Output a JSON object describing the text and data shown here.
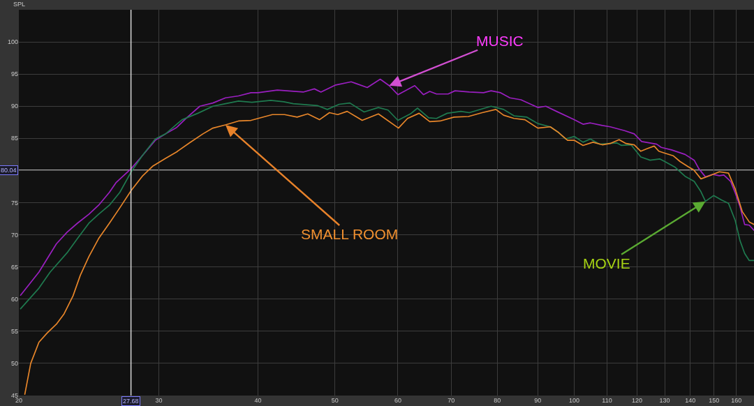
{
  "chart_data": {
    "type": "line",
    "log": "x",
    "ylabel": "SPL",
    "grid": true,
    "xlim": [
      20,
      168.4
    ],
    "xticks": [
      20,
      30,
      40,
      50,
      60,
      70,
      80,
      90,
      100,
      110,
      120,
      130,
      140,
      150,
      160
    ],
    "ylim": [
      45,
      105
    ],
    "yticks": [
      45,
      50,
      55,
      60,
      65,
      70,
      75,
      {
        "value": 80,
        "label": null
      },
      85,
      90,
      95,
      100
    ],
    "ref_lines": [
      {
        "axis": "x",
        "value": 27.68,
        "label": "27.68"
      },
      {
        "axis": "y",
        "value": 80.04,
        "label": "80.04"
      }
    ],
    "annotations": [
      {
        "text": "MUSIC",
        "x": 58.5,
        "y": 93.2
      },
      {
        "text": "SMALL ROOM",
        "x": 36.4,
        "y": 87.1
      },
      {
        "text": "MOVIE",
        "x": 146.3,
        "y": 75.2
      }
    ],
    "series": [
      {
        "color": "#9a1fc0",
        "x": [
          20.1,
          21.2,
          22.3,
          23.0,
          23.7,
          24.5,
          25.2,
          26.0,
          26.5,
          27.7,
          28.6,
          29.7,
          30.6,
          31.6,
          32.6,
          33.8,
          35.1,
          36.4,
          37.8,
          39.2,
          40.0,
          42.3,
          45.6,
          47.1,
          48.0,
          50.1,
          52.4,
          54.9,
          57.0,
          58.5,
          60.0,
          63.0,
          64.6,
          65.8,
          67.1,
          69.4,
          70.8,
          73.8,
          76.9,
          78.6,
          80.8,
          83.0,
          85.7,
          90.0,
          92.1,
          95.0,
          100.0,
          102.6,
          104.8,
          108.5,
          111.0,
          115.7,
          119.0,
          121.6,
          127.0,
          128.7,
          132.6,
          137.9,
          141.6,
          143.5,
          146.3,
          149.3,
          152.3,
          154.3,
          157.4,
          159.5,
          161.7,
          163.9,
          166.1,
          168.4
        ],
        "values": [
          60.6,
          64.2,
          68.6,
          70.4,
          71.8,
          73.2,
          74.6,
          76.6,
          78.1,
          80.3,
          82.3,
          84.7,
          85.7,
          86.7,
          88.3,
          90.0,
          90.5,
          91.3,
          91.6,
          92.1,
          92.1,
          92.5,
          92.2,
          92.7,
          92.2,
          93.3,
          93.8,
          92.9,
          94.2,
          93.2,
          91.8,
          93.2,
          91.8,
          92.3,
          91.9,
          91.9,
          92.4,
          92.2,
          92.1,
          92.4,
          92.1,
          91.3,
          91.0,
          89.8,
          90.0,
          89.2,
          87.9,
          87.2,
          87.4,
          87.0,
          86.8,
          86.2,
          85.7,
          84.5,
          84.1,
          83.6,
          83.2,
          82.5,
          81.6,
          80.3,
          79.0,
          79.4,
          79.2,
          79.3,
          78.3,
          76.5,
          74.4,
          71.6,
          71.5,
          70.7
        ]
      },
      {
        "color": "#1f7a4f",
        "x": [
          20.1,
          21.2,
          21.9,
          23.0,
          23.7,
          24.5,
          25.2,
          26.0,
          26.8,
          27.7,
          28.6,
          29.7,
          30.6,
          32.1,
          33.6,
          35.1,
          36.4,
          37.8,
          39.3,
          41.5,
          43.1,
          44.3,
          47.5,
          48.9,
          50.6,
          52.2,
          54.4,
          56.7,
          58.3,
          60.0,
          62.2,
          63.5,
          65.6,
          67.1,
          69.2,
          72.0,
          73.8,
          78.6,
          81.5,
          84.0,
          87.2,
          90.0,
          93.3,
          95.6,
          97.5,
          100.0,
          102.6,
          104.8,
          107.7,
          113.1,
          114.7,
          117.9,
          121.3,
          124.6,
          128.1,
          130.0,
          134.0,
          137.9,
          141.6,
          144.4,
          146.3,
          149.8,
          153.3,
          156.4,
          159.5,
          161.7,
          163.9,
          166.1,
          168.4
        ],
        "values": [
          58.5,
          61.7,
          64.2,
          67.2,
          69.4,
          71.8,
          73.2,
          74.6,
          76.6,
          79.8,
          82.3,
          84.9,
          85.7,
          87.9,
          88.9,
          90.0,
          90.4,
          90.8,
          90.6,
          90.9,
          90.7,
          90.4,
          90.1,
          89.5,
          90.3,
          90.5,
          89.1,
          89.8,
          89.4,
          87.8,
          88.8,
          89.7,
          88.2,
          88.1,
          88.9,
          89.2,
          89.0,
          90.0,
          89.5,
          88.5,
          88.3,
          87.3,
          86.8,
          85.9,
          84.9,
          85.3,
          84.4,
          84.9,
          84.1,
          84.3,
          83.9,
          84.0,
          82.1,
          81.6,
          81.8,
          81.4,
          80.5,
          79.1,
          78.3,
          76.7,
          75.2,
          76.1,
          75.4,
          74.9,
          72.2,
          69.1,
          67.1,
          66.0,
          66.0
        ]
      },
      {
        "color": "#e8862a",
        "x": [
          20.35,
          20.7,
          21.2,
          21.7,
          22.3,
          22.8,
          23.4,
          23.9,
          24.5,
          25.2,
          26.0,
          26.8,
          27.7,
          28.6,
          29.5,
          30.6,
          31.6,
          32.8,
          34.1,
          35.1,
          36.4,
          37.8,
          39.2,
          41.7,
          43.2,
          44.8,
          46.2,
          47.8,
          49.2,
          50.4,
          51.8,
          54.1,
          56.7,
          60.1,
          61.7,
          63.8,
          65.8,
          67.8,
          70.6,
          73.6,
          76.6,
          79.7,
          81.5,
          84.0,
          86.7,
          90.0,
          93.3,
          95.6,
          98.1,
          100.0,
          102.6,
          105.6,
          108.5,
          111.0,
          113.9,
          116.2,
          119.0,
          121.3,
          123.6,
          126.1,
          127.8,
          130.0,
          133.2,
          135.9,
          139.5,
          141.4,
          144.4,
          148.2,
          152.3,
          156.4,
          159.5,
          162.8,
          166.1,
          168.4
        ],
        "values": [
          45.2,
          50.0,
          53.3,
          54.7,
          56.1,
          57.7,
          60.5,
          63.7,
          66.6,
          69.4,
          71.8,
          74.2,
          76.9,
          79.1,
          80.7,
          81.9,
          82.9,
          84.3,
          85.7,
          86.6,
          87.1,
          87.7,
          87.8,
          88.7,
          88.7,
          88.3,
          88.8,
          87.9,
          89.0,
          88.7,
          89.2,
          87.8,
          88.8,
          86.6,
          88.1,
          88.9,
          87.6,
          87.7,
          88.3,
          88.4,
          89.0,
          89.5,
          88.6,
          88.1,
          87.9,
          86.6,
          86.8,
          85.9,
          84.7,
          84.7,
          83.9,
          84.4,
          84.0,
          84.2,
          84.8,
          84.2,
          84.0,
          83.0,
          83.4,
          83.8,
          83.0,
          82.7,
          82.3,
          81.4,
          80.5,
          80.1,
          78.7,
          79.2,
          79.8,
          79.6,
          77.1,
          73.6,
          72.0,
          71.6
        ]
      }
    ]
  }
}
